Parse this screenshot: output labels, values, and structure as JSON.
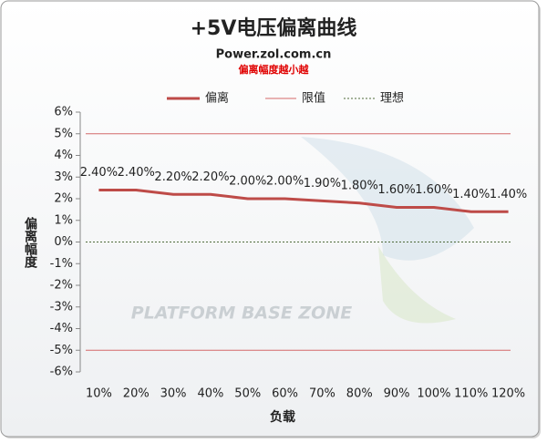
{
  "chart_data": {
    "type": "line",
    "title": "+5V电压偏离曲线",
    "subtitle": "Power.zol.com.cn",
    "note": "偏离幅度越小越",
    "watermark": "PLATFORM BASE ZONE",
    "x_label": "负载",
    "y_label": "偏离幅度",
    "categories": [
      "10%",
      "20%",
      "30%",
      "40%",
      "50%",
      "60%",
      "70%",
      "80%",
      "90%",
      "100%",
      "110%",
      "120%"
    ],
    "series": [
      {
        "name": "偏离",
        "color": "#be4b48",
        "values": [
          2.4,
          2.4,
          2.2,
          2.2,
          2.0,
          2.0,
          1.9,
          1.8,
          1.6,
          1.6,
          1.4,
          1.4
        ],
        "value_labels": [
          "2.40%",
          "2.40%",
          "2.20%",
          "2.20%",
          "2.00%",
          "2.00%",
          "1.90%",
          "1.80%",
          "1.60%",
          "1.60%",
          "1.40%",
          "1.40%"
        ]
      }
    ],
    "reference_lines": [
      {
        "name": "限值",
        "color": "#d46a6a",
        "values": [
          5,
          -5
        ]
      },
      {
        "name": "理想",
        "color": "#4f6b3a",
        "dashed": true,
        "values": [
          0
        ]
      }
    ],
    "ylim": [
      -6,
      6
    ],
    "yticks": [
      {
        "value": -6,
        "label": "-6%"
      },
      {
        "value": -5,
        "label": "-5%"
      },
      {
        "value": -4,
        "label": "-4%"
      },
      {
        "value": -3,
        "label": "-3%"
      },
      {
        "value": -2,
        "label": "-2%"
      },
      {
        "value": -1,
        "label": "-1%"
      },
      {
        "value": 0,
        "label": "0%"
      },
      {
        "value": 1,
        "label": "1%"
      },
      {
        "value": 2,
        "label": "2%"
      },
      {
        "value": 3,
        "label": "3%"
      },
      {
        "value": 4,
        "label": "4%"
      },
      {
        "value": 5,
        "label": "5%"
      },
      {
        "value": 6,
        "label": "6%"
      }
    ],
    "grid": false
  }
}
